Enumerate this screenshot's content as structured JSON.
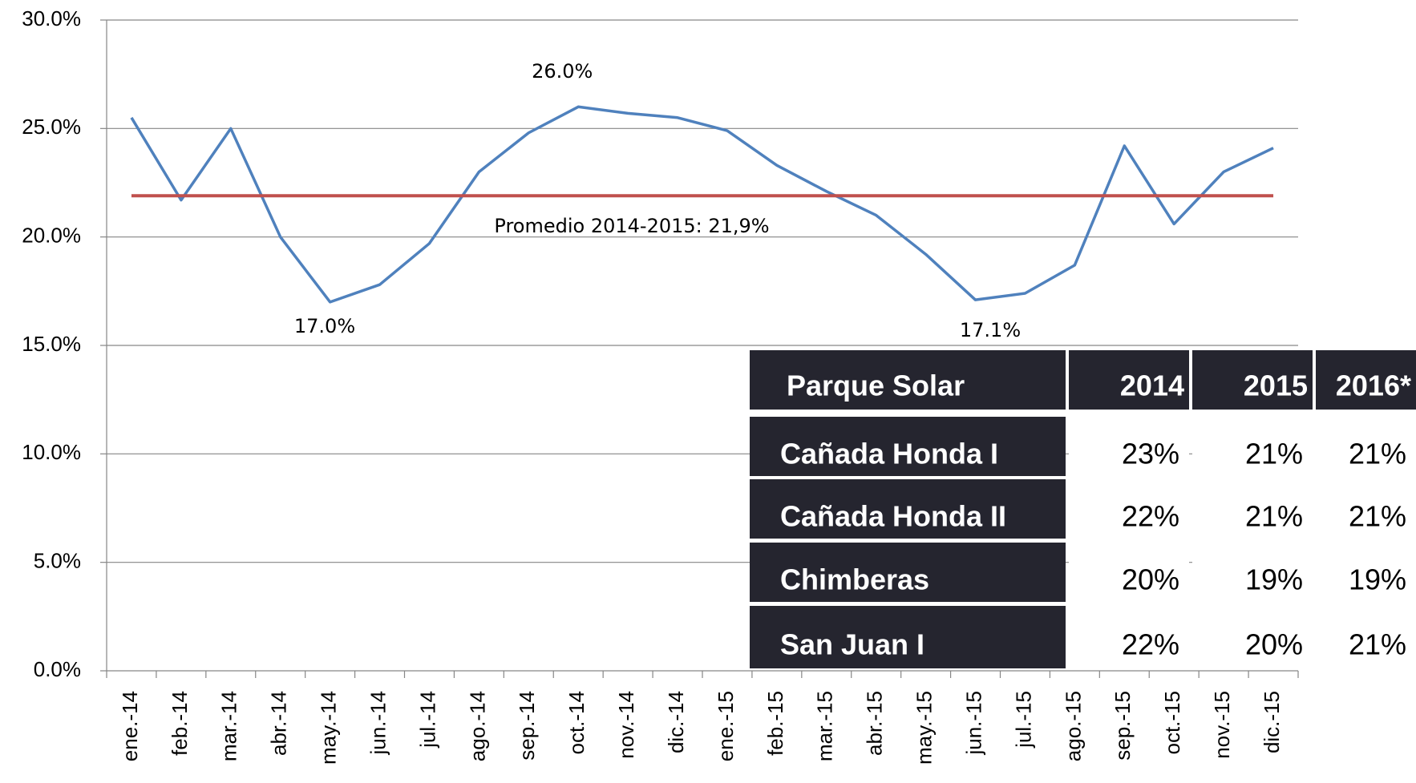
{
  "chart_data": {
    "type": "line",
    "categories": [
      "ene.-14",
      "feb.-14",
      "mar.-14",
      "abr.-14",
      "may.-14",
      "jun.-14",
      "jul.-14",
      "ago.-14",
      "sep.-14",
      "oct.-14",
      "nov.-14",
      "dic.-14",
      "ene.-15",
      "feb.-15",
      "mar.-15",
      "abr.-15",
      "may.-15",
      "jun.-15",
      "jul.-15",
      "ago.-15",
      "sep.-15",
      "oct.-15",
      "nov.-15",
      "dic.-15"
    ],
    "series": [
      {
        "color": "#4f81bd",
        "values": [
          25.5,
          21.7,
          25.0,
          20.0,
          17.0,
          17.8,
          19.7,
          23.0,
          24.8,
          26.0,
          25.7,
          25.5,
          24.9,
          23.3,
          22.1,
          21.0,
          19.2,
          17.1,
          17.4,
          18.7,
          24.2,
          20.6,
          23.0,
          24.1
        ]
      }
    ],
    "average_line": {
      "value": 21.9,
      "color": "#c0504d",
      "label": "Promedio 2014-2015: 21,9%"
    },
    "annotations": [
      "26.0%",
      "17.0%",
      "17.1%"
    ],
    "ylim": [
      0,
      30
    ],
    "yticks": [
      {
        "value": 0,
        "label": "0.0%"
      },
      {
        "value": 5,
        "label": "5.0%"
      },
      {
        "value": 10,
        "label": "10.0%"
      },
      {
        "value": 15,
        "label": "15.0%"
      },
      {
        "value": 20,
        "label": "20.0%"
      },
      {
        "value": 25,
        "label": "25.0%"
      },
      {
        "value": 30,
        "label": "30.0%"
      }
    ],
    "grid": true
  },
  "table": {
    "header": [
      "Parque Solar",
      "2014",
      "2015",
      "2016*"
    ],
    "rows": [
      [
        "Cañada Honda I",
        "23%",
        "21%",
        "21%"
      ],
      [
        "Cañada Honda II",
        "22%",
        "21%",
        "21%"
      ],
      [
        "Chimberas",
        "20%",
        "19%",
        "19%"
      ],
      [
        "San Juan I",
        "22%",
        "20%",
        "21%"
      ]
    ]
  }
}
